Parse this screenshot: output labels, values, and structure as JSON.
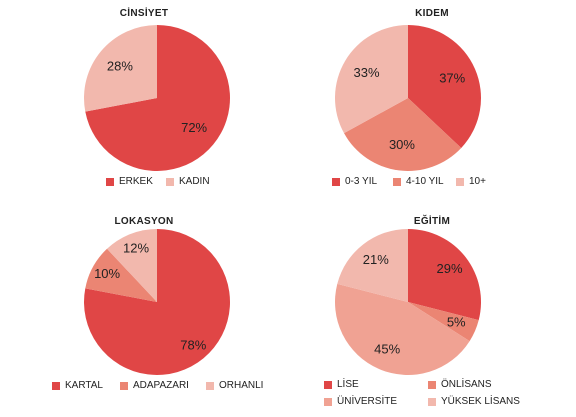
{
  "chart_data": [
    {
      "type": "pie",
      "title": "CİNSİYET",
      "categories": [
        "ERKEK",
        "KADIN"
      ],
      "values": [
        72,
        28
      ],
      "labels": [
        "72%",
        "28%"
      ],
      "colors": [
        "#e04646",
        "#f2b8ad"
      ],
      "legend_position": "bottom"
    },
    {
      "type": "pie",
      "title": "KIDEM",
      "categories": [
        "0-3 YIL",
        "4-10 YIL",
        "10+"
      ],
      "values": [
        37,
        30,
        33
      ],
      "labels": [
        "37%",
        "30%",
        "33%"
      ],
      "colors": [
        "#e04646",
        "#eb8573",
        "#f2b8ad"
      ],
      "legend_position": "bottom"
    },
    {
      "type": "pie",
      "title": "LOKASYON",
      "categories": [
        "KARTAL",
        "ADAPAZARI",
        "ORHANLI"
      ],
      "values": [
        78,
        10,
        12
      ],
      "labels": [
        "78%",
        "10%",
        "12%"
      ],
      "colors": [
        "#e04646",
        "#eb8573",
        "#f2b8ad"
      ],
      "legend_position": "bottom"
    },
    {
      "type": "pie",
      "title": "EĞİTİM",
      "categories": [
        "LİSE",
        "ÖNLİSANS",
        "ÜNİVERSİTE",
        "YÜKSEK LİSANS"
      ],
      "values": [
        29,
        5,
        45,
        21
      ],
      "labels": [
        "29%",
        "5%",
        "45%",
        "21%"
      ],
      "colors": [
        "#e04646",
        "#eb8573",
        "#f0a293",
        "#f2b8ad"
      ],
      "legend_position": "bottom"
    }
  ]
}
